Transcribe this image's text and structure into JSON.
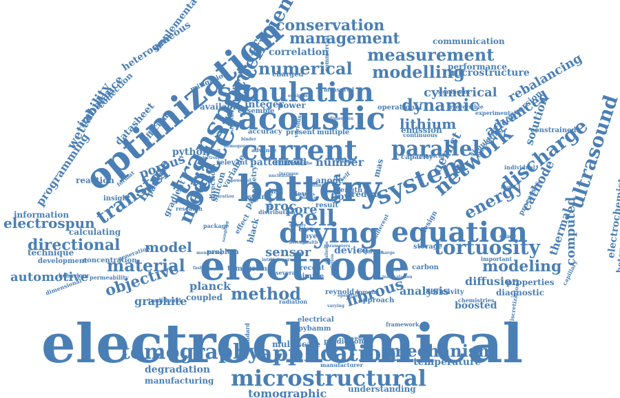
{
  "color": "#4a7fb5",
  "words": [
    "electrochemical",
    "electrode",
    "battery",
    "batterie",
    "optimization",
    "acoustic",
    "current",
    "simulation",
    "transport",
    "drying",
    "equation",
    "system",
    "network",
    "parallel",
    "cell",
    "media",
    "transfer",
    "discharge",
    "ultrasound",
    "tortuosity",
    "microstructural",
    "application",
    "tomography",
    "mechanism",
    "conservation",
    "management",
    "measurement",
    "numerical",
    "modelling",
    "coefficient",
    "dynamic",
    "cylindrical",
    "advanced",
    "lithium",
    "energy",
    "method",
    "material",
    "model",
    "directional",
    "electrospun",
    "modeling",
    "fibrous",
    "diffusion",
    "objective",
    "automotive",
    "analysis",
    "sensor",
    "pore",
    "proc",
    "data",
    "number",
    "nernst",
    "image",
    "porous",
    "programming",
    "wettability",
    "imbalance",
    "heterogeneous",
    "implementation",
    "datasheet",
    "correlation",
    "computed",
    "cathode",
    "rebalancing",
    "solution",
    "thermal",
    "electrochemistry",
    "heterogeneity",
    "tomographic",
    "degradation",
    "manufacturing",
    "understanding",
    "temperature",
    "planck",
    "coupled",
    "graphite",
    "technique",
    "information",
    "reaction",
    "gradient",
    "pattern",
    "python",
    "mitigation",
    "efficient",
    "collection",
    "communication",
    "performance",
    "microstructure",
    "constrained",
    "boosted",
    "diagnostic",
    "properties",
    "device",
    "flow",
    "anode",
    "mas",
    "redox",
    "capacity",
    "physical",
    "calculating",
    "development",
    "problem",
    "silicon",
    "black",
    "effect",
    "tree",
    "layer",
    "health",
    "recent",
    "simple",
    "several",
    "electrical",
    "pybamm",
    "multiscale",
    "prediction",
    "manufacturer",
    "vehicle",
    "framework",
    "approach",
    "reynold",
    "diffusivity",
    "chemistries",
    "domain",
    "storage",
    "carbon",
    "design",
    "different",
    "study",
    "processes",
    "simulating",
    "conversion",
    "irreversible",
    "experimental",
    "significant",
    "characteristic",
    "individual",
    "important",
    "capillary",
    "discretization",
    "dimensional",
    "concentration",
    "permeability",
    "behaviour",
    "traditional",
    "generation",
    "monitoring",
    "tomogram",
    "fashion",
    "radiation",
    "varying",
    "standard",
    "patterned",
    "mixed",
    "power",
    "integer",
    "ensemble",
    "available",
    "charged",
    "measured",
    "commercial",
    "operational",
    "continuous",
    "emission",
    "multiple",
    "present",
    "various",
    "accuracy",
    "advance",
    "relevant",
    "insight",
    "format",
    "research",
    "package",
    "direction",
    "geometry",
    "distribution",
    "level",
    "result",
    "length",
    "self",
    "range",
    "string",
    "hall",
    "pack",
    "variable",
    "larger",
    "nickel",
    "particle",
    "charge",
    "challenge",
    "strategy",
    "average",
    "density",
    "evolution",
    "operating",
    "thickness",
    "surface",
    "optimise",
    "describe",
    "increase",
    "nucleation",
    "binder",
    "cell",
    "electrolyte",
    "saturation",
    "micropore",
    "dimension",
    "structure",
    "homogeneous",
    "equipment",
    "powerful",
    "sampling",
    "intrinsic",
    "parameters",
    "macro",
    "intercalation",
    "limitation",
    "physics",
    "thin",
    "sample",
    "complex",
    "deep",
    "numerically",
    "contact",
    "mass"
  ]
}
